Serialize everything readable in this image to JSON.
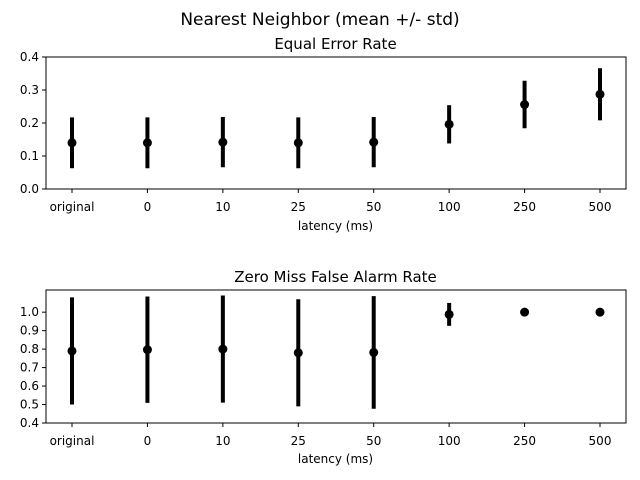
{
  "figure": {
    "suptitle": "Nearest Neighbor (mean +/- std)"
  },
  "chart_data": [
    {
      "type": "errorbar",
      "title": "Equal Error Rate",
      "xlabel": "latency (ms)",
      "ylabel": "",
      "categories": [
        "original",
        "0",
        "10",
        "25",
        "50",
        "100",
        "250",
        "500"
      ],
      "mean": [
        0.14,
        0.14,
        0.142,
        0.14,
        0.142,
        0.196,
        0.256,
        0.287
      ],
      "std": [
        0.077,
        0.077,
        0.076,
        0.077,
        0.076,
        0.058,
        0.072,
        0.079
      ],
      "ylim": [
        0.0,
        0.4
      ],
      "yticks": [
        "0.0",
        "0.1",
        "0.2",
        "0.3",
        "0.4"
      ],
      "ytick_values": [
        0.0,
        0.1,
        0.2,
        0.3,
        0.4
      ],
      "grid": false,
      "color": "#000000"
    },
    {
      "type": "errorbar",
      "title": "Zero Miss False Alarm Rate",
      "xlabel": "latency (ms)",
      "ylabel": "",
      "categories": [
        "original",
        "0",
        "10",
        "25",
        "50",
        "100",
        "250",
        "500"
      ],
      "mean": [
        0.79,
        0.797,
        0.8,
        0.78,
        0.782,
        0.988,
        1.0,
        1.0
      ],
      "std": [
        0.29,
        0.288,
        0.29,
        0.29,
        0.305,
        0.062,
        0.0,
        0.0
      ],
      "ylim": [
        0.4,
        1.12
      ],
      "yticks": [
        "0.4",
        "0.5",
        "0.6",
        "0.7",
        "0.8",
        "0.9",
        "1.0"
      ],
      "ytick_values": [
        0.4,
        0.5,
        0.6,
        0.7,
        0.8,
        0.9,
        1.0
      ],
      "grid": false,
      "color": "#000000"
    }
  ]
}
